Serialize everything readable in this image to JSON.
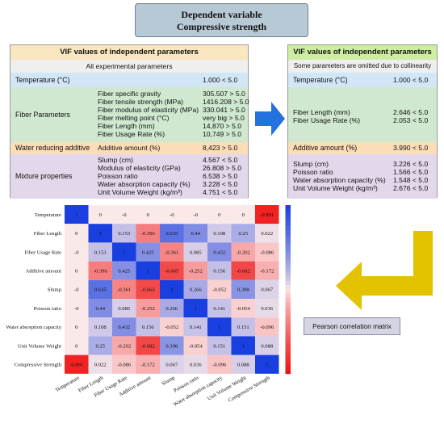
{
  "header": {
    "line1": "Dependent variable",
    "line2": "Compressive strength"
  },
  "left_table": {
    "title": "VIF values of independent parameters",
    "subtitle": "All experimental parameters",
    "sections": [
      {
        "name": "Temperature (°C)",
        "items": [
          {
            "label": "",
            "value": "1.000 < 5.0"
          }
        ]
      },
      {
        "name": "Fiber Parameters",
        "items": [
          {
            "label": "Fiber specific gravity",
            "value": "305.507 > 5.0"
          },
          {
            "label": "Fiber tensile strength (MPa)",
            "value": "1416.208 > 5.0"
          },
          {
            "label": "Fiber modulus of elasticity (MPa)",
            "value": "330.041 > 5.0"
          },
          {
            "label": "Fiber melting point (°C)",
            "value": "very big > 5.0"
          },
          {
            "label": "Fiber Length (mm)",
            "value": "14,870 > 5.0"
          },
          {
            "label": "Fiber Usage Rate (%)",
            "value": "10,749 > 5.0"
          }
        ]
      },
      {
        "name": "Water reducing additive",
        "items": [
          {
            "label": "Additive amount (%)",
            "value": "8,423 > 5.0"
          }
        ]
      },
      {
        "name": "Mixture properties",
        "items": [
          {
            "label": "Slump (cm)",
            "value": "4.567 < 5.0"
          },
          {
            "label": "Modulus of elasticity (GPa)",
            "value": "26.808 > 5.0"
          },
          {
            "label": "Poisson ratio",
            "value": "6.538 > 5.0"
          },
          {
            "label": "Water absorption capacity (%)",
            "value": "3.228 < 5.0"
          },
          {
            "label": "Unit Volume Weight (kg/m³)",
            "value": "4.751 < 5.0"
          }
        ]
      }
    ]
  },
  "right_table": {
    "title": "VIF values of independent parameters",
    "subtitle": "Some parameters are omitted due to collinearity",
    "sections": [
      {
        "items": [
          {
            "label": "Temperature (°C)",
            "value": "1.000 < 5.0"
          }
        ]
      },
      {
        "items": [
          {
            "label": "Fiber Length (mm)",
            "value": "2.646 < 5.0"
          },
          {
            "label": "Fiber Usage Rate (%)",
            "value": "2.053 < 5.0"
          }
        ]
      },
      {
        "items": [
          {
            "label": "Additive amount (%)",
            "value": "3.990 < 5.0"
          }
        ]
      },
      {
        "items": [
          {
            "label": "Slump (cm)",
            "value": "3.226 < 5.0"
          },
          {
            "label": "Poisson ratio",
            "value": "1.566 < 5.0"
          },
          {
            "label": "Water absorption capacity (%)",
            "value": "1.548 < 5.0"
          },
          {
            "label": "Unit Volume Weight (kg/m³)",
            "value": "2.676 < 5.0"
          }
        ]
      }
    ]
  },
  "chart_data": {
    "type": "heatmap",
    "title": "",
    "variables": [
      "Temperature",
      "Fiber Length",
      "Fiber Usage Rate",
      "Additive amount",
      "Slump",
      "Poisson ratio",
      "Water absorption capacity",
      "Unit Volume Weight",
      "Compressive Strength"
    ],
    "cell_labels": [
      [
        "1",
        "0",
        "-0",
        "0",
        "-0",
        "-0",
        "0",
        "0",
        "-0.891"
      ],
      [
        "0",
        "1",
        "0.153",
        "-0.396",
        "0.635",
        "0.44",
        "0.108",
        "0.25",
        "0.022"
      ],
      [
        "-0",
        "0.153",
        "1",
        "0.425",
        "-0.361",
        "0.085",
        "0.432",
        "-0.202",
        "-0.086"
      ],
      [
        "0",
        "-0.396",
        "0.425",
        "1",
        "-0.665",
        "-0.252",
        "0.156",
        "-0.682",
        "-0.172"
      ],
      [
        "-0",
        "0.635",
        "-0.361",
        "-0.665",
        "1",
        "0.266",
        "-0.052",
        "0.398",
        "0.067"
      ],
      [
        "-0",
        "0.44",
        "0.085",
        "-0.252",
        "0.266",
        "1",
        "0.141",
        "-0.054",
        "0.036"
      ],
      [
        "0",
        "0.108",
        "0.432",
        "0.156",
        "-0.052",
        "0.141",
        "1",
        "0.151",
        "-0.096"
      ],
      [
        "0",
        "0.25",
        "-0.202",
        "-0.682",
        "0.398",
        "-0.054",
        "0.151",
        "1",
        "0.088"
      ],
      [
        "-0.891",
        "0.022",
        "-0.086",
        "-0.172",
        "0.067",
        "0.036",
        "-0.096",
        "0.088",
        "1"
      ]
    ],
    "colorbar": {
      "ticks": [
        "1",
        "0.8",
        "0.6",
        "0.4",
        "0.2",
        "0",
        "-0.2",
        "-0.4",
        "-0.6",
        "-0.8",
        "-1"
      ],
      "range": [
        -1,
        1
      ],
      "color_high": "#1a3fe0",
      "color_zero": "#fbe9e9",
      "color_low": "#f01010"
    }
  },
  "annotation": {
    "label": "Pearson correlation matrix"
  },
  "colors": {
    "arrow_blue": "#2372e0",
    "arrow_yellow": "#e3c200"
  }
}
